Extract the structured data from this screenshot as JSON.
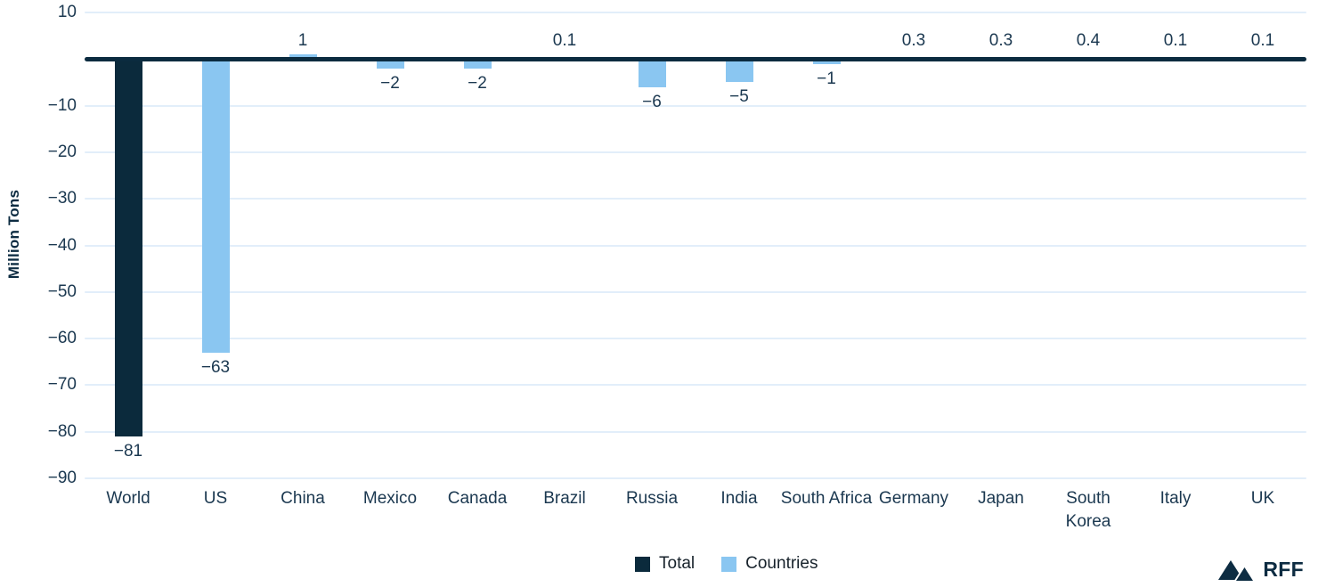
{
  "chart_data": {
    "type": "bar",
    "title": "",
    "xlabel": "",
    "ylabel": "Million Tons",
    "ylim": [
      -90,
      10
    ],
    "grid": true,
    "legend_position": "bottom-center",
    "y_ticks": [
      {
        "value": 10,
        "label": "10"
      },
      {
        "value": -10,
        "label": "−10"
      },
      {
        "value": -20,
        "label": "−20"
      },
      {
        "value": -30,
        "label": "−30"
      },
      {
        "value": -40,
        "label": "−40"
      },
      {
        "value": -50,
        "label": "−50"
      },
      {
        "value": -60,
        "label": "−60"
      },
      {
        "value": -70,
        "label": "−70"
      },
      {
        "value": -80,
        "label": "−80"
      },
      {
        "value": -90,
        "label": "−90"
      }
    ],
    "categories": [
      "World",
      "US",
      "China",
      "Mexico",
      "Canada",
      "Brazil",
      "Russia",
      "India",
      "South Africa",
      "Germany",
      "Japan",
      "South Korea",
      "Italy",
      "UK"
    ],
    "values": [
      -81,
      -63,
      1,
      -2,
      -2,
      0.1,
      -6,
      -5,
      -1,
      0.3,
      0.3,
      0.4,
      0.1,
      0.1
    ],
    "value_labels": [
      "−81",
      "−63",
      "1",
      "−2",
      "−2",
      "0.1",
      "−6",
      "−5",
      "−1",
      "0.3",
      "0.3",
      "0.4",
      "0.1",
      "0.1"
    ],
    "bar_series": [
      "Total",
      "Countries",
      "Countries",
      "Countries",
      "Countries",
      "Countries",
      "Countries",
      "Countries",
      "Countries",
      "Countries",
      "Countries",
      "Countries",
      "Countries",
      "Countries"
    ],
    "legend": [
      {
        "label": "Total",
        "color": "#0b2a3c"
      },
      {
        "label": "Countries",
        "color": "#8ac6f1"
      }
    ]
  },
  "colors": {
    "total_bar": "#0b2a3c",
    "countries_bar": "#8ac6f1",
    "gridline": "#e2eefa",
    "zero_line": "#0b2b3f",
    "text": "#1b3850"
  },
  "branding": {
    "logo_text": "RFF",
    "logo_icon": "mountains-icon"
  }
}
